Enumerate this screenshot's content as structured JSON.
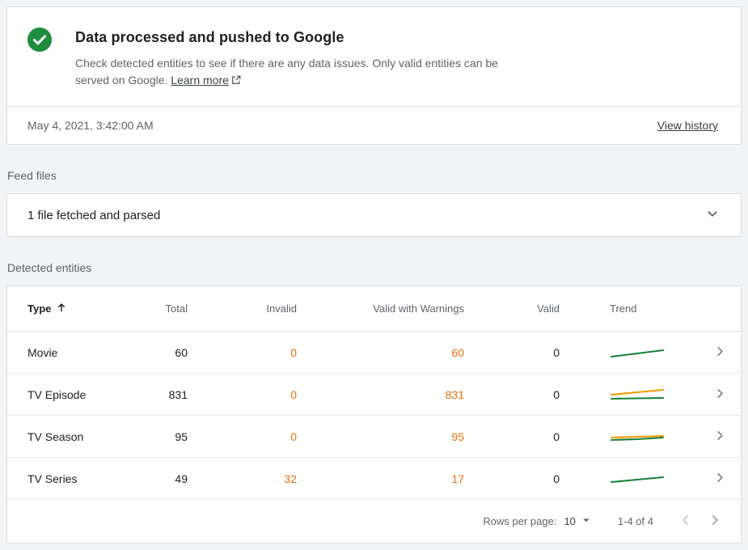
{
  "status_card": {
    "title": "Data processed and pushed to Google",
    "description": "Check detected entities to see if there are any data issues. Only valid entities can be served on Google.",
    "learn_more_label": "Learn more",
    "timestamp": "May 4, 2021, 3:42:00 AM",
    "view_history_label": "View history"
  },
  "feed_files": {
    "section_label": "Feed files",
    "summary": "1 file fetched and parsed"
  },
  "detected_entities": {
    "section_label": "Detected entities",
    "columns": {
      "type": "Type",
      "total": "Total",
      "invalid": "Invalid",
      "valid_with_warnings": "Valid with Warnings",
      "valid": "Valid",
      "trend": "Trend"
    },
    "sort": {
      "column": "Type",
      "direction": "ascending"
    },
    "rows": [
      {
        "type": "Movie",
        "total": "60",
        "invalid": "0",
        "valid_with_warnings": "60",
        "valid": "0",
        "trend": [
          {
            "color": "#188038",
            "points": [
              [
                2,
                14
              ],
              [
                34,
                10
              ],
              [
                66,
                6
              ]
            ]
          }
        ]
      },
      {
        "type": "TV Episode",
        "total": "831",
        "invalid": "0",
        "valid_with_warnings": "831",
        "valid": "0",
        "trend": [
          {
            "color": "#f29900",
            "points": [
              [
                2,
                9
              ],
              [
                34,
                6
              ],
              [
                66,
                3
              ]
            ]
          },
          {
            "color": "#188038",
            "points": [
              [
                2,
                14
              ],
              [
                34,
                13.5
              ],
              [
                66,
                13
              ]
            ]
          }
        ]
      },
      {
        "type": "TV Season",
        "total": "95",
        "invalid": "0",
        "valid_with_warnings": "95",
        "valid": "0",
        "trend": [
          {
            "color": "#f29900",
            "points": [
              [
                2,
                10
              ],
              [
                34,
                9
              ],
              [
                66,
                8
              ]
            ]
          },
          {
            "color": "#188038",
            "points": [
              [
                2,
                13
              ],
              [
                34,
                12
              ],
              [
                66,
                10
              ]
            ]
          }
        ]
      },
      {
        "type": "TV Series",
        "total": "49",
        "invalid": "32",
        "valid_with_warnings": "17",
        "valid": "0",
        "trend": [
          {
            "color": "#188038",
            "points": [
              [
                2,
                13
              ],
              [
                34,
                10
              ],
              [
                66,
                7
              ]
            ]
          }
        ]
      }
    ],
    "pagination": {
      "rows_per_page_label": "Rows per page:",
      "rows_per_page_value": "10",
      "range_label": "1-4 of 4"
    }
  },
  "colors": {
    "success_green": "#1e8e3e",
    "warning_orange": "#e8710a",
    "trend_green": "#188038",
    "trend_orange": "#f29900",
    "card_border": "#dadce0"
  }
}
